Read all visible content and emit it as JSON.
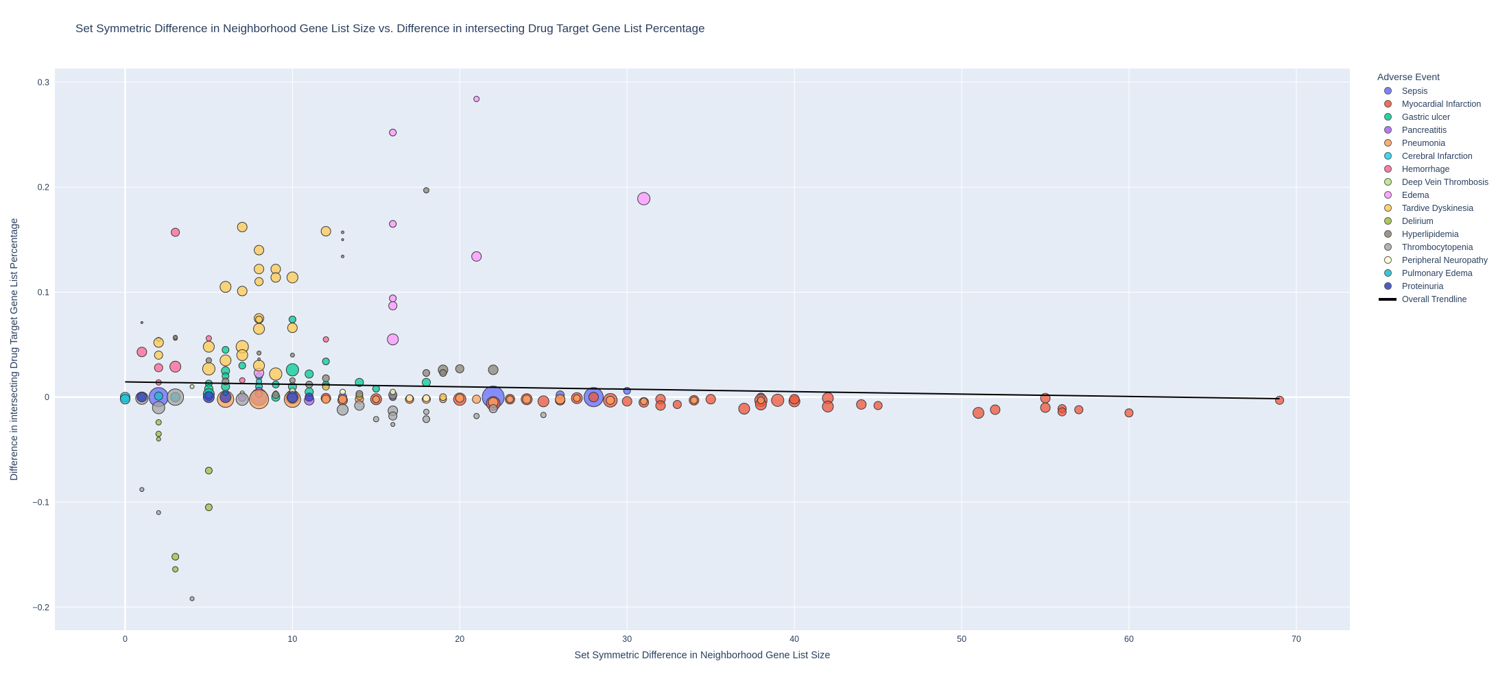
{
  "chart_data": {
    "type": "scatter",
    "title": "Set Symmetric Difference in Neighborhood Gene List Size vs. Difference in intersecting Drug Target Gene List Percentage",
    "xlabel": "Set Symmetric Difference in Neighborhood Gene List Size",
    "ylabel": "Difference in intersecting Drug Target Gene List Percentage",
    "xlim": [
      -4.2,
      73.2
    ],
    "ylim": [
      -0.222,
      0.313
    ],
    "x_ticks": [
      0,
      10,
      20,
      30,
      40,
      50,
      60,
      70
    ],
    "y_ticks": [
      -0.2,
      -0.1,
      0,
      0.1,
      0.2,
      0.3
    ],
    "y_tick_labels": [
      "−0.2",
      "−0.1",
      "0",
      "0.1",
      "0.2",
      "0.3"
    ],
    "legend_title": "Adverse Event",
    "legend_placement": "right",
    "grid": true,
    "series": [
      {
        "name": "Sepsis",
        "color": "#636efa",
        "points": [
          [
            2,
            0,
            14
          ],
          [
            8,
            0,
            12
          ],
          [
            10,
            0,
            10
          ],
          [
            13,
            0,
            6
          ],
          [
            22,
            0,
            16
          ],
          [
            26,
            0.002,
            6
          ],
          [
            28,
            0,
            14
          ],
          [
            30,
            0.006,
            5
          ],
          [
            38,
            0,
            6
          ],
          [
            16,
            0,
            5
          ]
        ]
      },
      {
        "name": "Myocardial Infarction",
        "color": "#ef553b",
        "points": [
          [
            12,
            -0.001,
            7
          ],
          [
            13,
            -0.003,
            7
          ],
          [
            15,
            -0.002,
            8
          ],
          [
            17,
            -0.002,
            6
          ],
          [
            20,
            -0.002,
            9
          ],
          [
            22,
            -0.006,
            10
          ],
          [
            23,
            -0.002,
            7
          ],
          [
            24,
            -0.002,
            8
          ],
          [
            25,
            -0.004,
            8
          ],
          [
            26,
            -0.003,
            7
          ],
          [
            27,
            -0.001,
            8
          ],
          [
            29,
            -0.003,
            10
          ],
          [
            30,
            -0.004,
            7
          ],
          [
            31,
            -0.005,
            7
          ],
          [
            32,
            -0.002,
            7
          ],
          [
            32,
            -0.008,
            7
          ],
          [
            33,
            -0.007,
            6
          ],
          [
            34,
            -0.003,
            7
          ],
          [
            35,
            -0.002,
            7
          ],
          [
            37,
            -0.011,
            8
          ],
          [
            38,
            -0.003,
            9
          ],
          [
            38,
            -0.007,
            8
          ],
          [
            39,
            -0.003,
            9
          ],
          [
            40,
            -0.004,
            8
          ],
          [
            40,
            -0.002,
            7
          ],
          [
            42,
            -0.001,
            8
          ],
          [
            42,
            -0.009,
            8
          ],
          [
            44,
            -0.007,
            7
          ],
          [
            45,
            -0.008,
            6
          ],
          [
            51,
            -0.015,
            8
          ],
          [
            52,
            -0.012,
            7
          ],
          [
            55,
            -0.001,
            7
          ],
          [
            55,
            -0.01,
            7
          ],
          [
            56,
            -0.011,
            6
          ],
          [
            56,
            -0.014,
            6
          ],
          [
            57,
            -0.012,
            6
          ],
          [
            60,
            -0.015,
            6
          ],
          [
            69,
            -0.003,
            6
          ],
          [
            28,
            0,
            7
          ]
        ]
      },
      {
        "name": "Gastric ulcer",
        "color": "#00cc96",
        "points": [
          [
            3,
            0,
            6
          ],
          [
            5,
            0.013,
            5
          ],
          [
            5,
            0.008,
            6
          ],
          [
            5,
            0.003,
            8
          ],
          [
            6,
            0.045,
            5
          ],
          [
            6,
            0.025,
            6
          ],
          [
            6,
            0.02,
            5
          ],
          [
            6,
            0.01,
            6
          ],
          [
            7,
            0.03,
            5
          ],
          [
            8,
            0.02,
            5
          ],
          [
            8,
            0.01,
            5
          ],
          [
            9,
            0.012,
            5
          ],
          [
            10,
            0.074,
            5
          ],
          [
            10,
            0.026,
            9
          ],
          [
            10,
            0.01,
            6
          ],
          [
            11,
            0.022,
            6
          ],
          [
            11,
            0.005,
            6
          ],
          [
            12,
            0.034,
            5
          ],
          [
            12,
            0.012,
            5
          ],
          [
            14,
            0.014,
            6
          ],
          [
            15,
            0.008,
            5
          ],
          [
            18,
            0.014,
            6
          ],
          [
            9,
            0,
            6
          ],
          [
            10,
            0.004,
            5
          ]
        ]
      },
      {
        "name": "Pancreatitis",
        "color": "#ab63fa",
        "points": [
          [
            1,
            0,
            7
          ],
          [
            5,
            0,
            5
          ],
          [
            7,
            0,
            6
          ],
          [
            8,
            0.006,
            5
          ],
          [
            10,
            0,
            8
          ],
          [
            11,
            -0.003,
            7
          ],
          [
            8,
            0.003,
            5
          ]
        ]
      },
      {
        "name": "Pneumonia",
        "color": "#ffa15a",
        "points": [
          [
            6,
            -0.002,
            12
          ],
          [
            8,
            -0.002,
            14
          ],
          [
            10,
            -0.002,
            12
          ],
          [
            12,
            -0.002,
            6
          ],
          [
            13,
            -0.002,
            6
          ],
          [
            14,
            -0.002,
            6
          ],
          [
            15,
            -0.002,
            5
          ],
          [
            17,
            -0.002,
            6
          ],
          [
            18,
            -0.002,
            6
          ],
          [
            19,
            -0.002,
            5
          ],
          [
            20,
            -0.001,
            6
          ],
          [
            21,
            -0.002,
            6
          ],
          [
            22,
            -0.005,
            7
          ],
          [
            23,
            -0.002,
            5
          ],
          [
            24,
            -0.002,
            6
          ],
          [
            26,
            -0.002,
            7
          ],
          [
            27,
            -0.001,
            5
          ],
          [
            29,
            -0.003,
            6
          ],
          [
            31,
            -0.004,
            5
          ],
          [
            34,
            -0.003,
            5
          ],
          [
            38,
            -0.003,
            5
          ]
        ]
      },
      {
        "name": "Cerebral Infarction",
        "color": "#19d3f3",
        "points": [
          [
            0,
            0,
            7
          ],
          [
            1,
            0,
            5
          ],
          [
            3,
            0,
            7
          ],
          [
            5,
            0.002,
            5
          ]
        ]
      },
      {
        "name": "Hemorrhage",
        "color": "#ff6692",
        "points": [
          [
            1,
            0.043,
            7
          ],
          [
            2,
            0.028,
            6
          ],
          [
            2,
            0.014,
            4
          ],
          [
            3,
            0.157,
            6
          ],
          [
            3,
            0.029,
            8
          ],
          [
            3,
            0.056,
            3
          ],
          [
            5,
            0.056,
            4
          ],
          [
            7,
            0.016,
            4
          ],
          [
            12,
            0.055,
            4
          ]
        ]
      },
      {
        "name": "Deep Vein Thrombosis",
        "color": "#b6e880",
        "points": [
          [
            2,
            0.055,
            3
          ],
          [
            4,
            0.01,
            3
          ],
          [
            7,
            0.004,
            3
          ],
          [
            9,
            0.004,
            3
          ]
        ]
      },
      {
        "name": "Edema",
        "color": "#ff97ff",
        "points": [
          [
            8,
            0.023,
            7
          ],
          [
            16,
            0.252,
            5
          ],
          [
            16,
            0.165,
            5
          ],
          [
            16,
            0.094,
            5
          ],
          [
            16,
            0.087,
            6
          ],
          [
            16,
            0.055,
            8
          ],
          [
            21,
            0.284,
            4
          ],
          [
            21,
            0.134,
            7
          ],
          [
            31,
            0.189,
            9
          ]
        ]
      },
      {
        "name": "Tardive Dyskinesia",
        "color": "#fecb52",
        "points": [
          [
            2,
            0.052,
            7
          ],
          [
            2,
            0.04,
            6
          ],
          [
            5,
            0.048,
            8
          ],
          [
            5,
            0.027,
            9
          ],
          [
            6,
            0.105,
            8
          ],
          [
            6,
            0.035,
            8
          ],
          [
            7,
            0.162,
            7
          ],
          [
            7,
            0.101,
            7
          ],
          [
            7,
            0.048,
            9
          ],
          [
            7,
            0.04,
            8
          ],
          [
            8,
            0.14,
            7
          ],
          [
            8,
            0.122,
            7
          ],
          [
            8,
            0.11,
            6
          ],
          [
            8,
            0.075,
            7
          ],
          [
            8,
            0.065,
            8
          ],
          [
            8,
            0.03,
            8
          ],
          [
            9,
            0.122,
            7
          ],
          [
            9,
            0.114,
            7
          ],
          [
            9,
            0.022,
            9
          ],
          [
            10,
            0.114,
            8
          ],
          [
            10,
            0.066,
            7
          ],
          [
            12,
            0.158,
            7
          ],
          [
            12,
            0.01,
            5
          ],
          [
            14,
            0.001,
            5
          ],
          [
            19,
            0,
            5
          ],
          [
            8,
            0.074,
            5
          ]
        ]
      },
      {
        "name": "Delirium",
        "color": "#9dc03e",
        "points": [
          [
            2,
            -0.024,
            4
          ],
          [
            2,
            -0.035,
            4
          ],
          [
            2,
            -0.04,
            3
          ],
          [
            3,
            -0.152,
            5
          ],
          [
            3,
            -0.164,
            4
          ],
          [
            5,
            -0.07,
            5
          ],
          [
            5,
            -0.105,
            5
          ]
        ]
      },
      {
        "name": "Hyperlipidemia",
        "color": "#8c8577",
        "points": [
          [
            1,
            0.071,
            1.5
          ],
          [
            5,
            0.035,
            4
          ],
          [
            6,
            0.015,
            5
          ],
          [
            9,
            0.002,
            5
          ],
          [
            10,
            0.016,
            4
          ],
          [
            11,
            0.012,
            5
          ],
          [
            12,
            0.018,
            5
          ],
          [
            13,
            0.157,
            2
          ],
          [
            13,
            0.15,
            1.5
          ],
          [
            13,
            0.134,
            2
          ],
          [
            14,
            0.003,
            5
          ],
          [
            16,
            0.002,
            6
          ],
          [
            18,
            0.197,
            4
          ],
          [
            18,
            0.023,
            5
          ],
          [
            19,
            0.026,
            7
          ],
          [
            19,
            0.023,
            5
          ],
          [
            20,
            0.027,
            6
          ],
          [
            22,
            0.026,
            7
          ],
          [
            8,
            0.042,
            3
          ],
          [
            8,
            0.036,
            2
          ],
          [
            10,
            0.04,
            3
          ],
          [
            3,
            0.057,
            3
          ]
        ]
      },
      {
        "name": "Thrombocytopenia",
        "color": "#a6a6a6",
        "points": [
          [
            1,
            -0.001,
            9
          ],
          [
            1,
            -0.088,
            3
          ],
          [
            2,
            -0.01,
            9
          ],
          [
            2,
            -0.11,
            3
          ],
          [
            3,
            0,
            12
          ],
          [
            4,
            -0.192,
            3
          ],
          [
            7,
            -0.002,
            9
          ],
          [
            10,
            -0.001,
            7
          ],
          [
            13,
            -0.012,
            8
          ],
          [
            14,
            -0.008,
            7
          ],
          [
            15,
            -0.021,
            4
          ],
          [
            16,
            -0.013,
            7
          ],
          [
            16,
            -0.018,
            6
          ],
          [
            16,
            -0.026,
            3
          ],
          [
            18,
            -0.014,
            4
          ],
          [
            18,
            -0.021,
            5
          ],
          [
            21,
            -0.018,
            4
          ],
          [
            22,
            -0.011,
            6
          ],
          [
            25,
            -0.017,
            4
          ]
        ]
      },
      {
        "name": "Peripheral Neuropathy",
        "color": "#fdfbc6",
        "points": [
          [
            10,
            0.006,
            4
          ],
          [
            13,
            0.005,
            4
          ],
          [
            16,
            0.005,
            4
          ],
          [
            17,
            -0.001,
            5
          ],
          [
            18,
            -0.001,
            5
          ]
        ]
      },
      {
        "name": "Pulmonary Edema",
        "color": "#17becf",
        "points": [
          [
            0,
            -0.002,
            7
          ],
          [
            2,
            0.001,
            6
          ],
          [
            6,
            0.004,
            4
          ],
          [
            8,
            0.015,
            4
          ]
        ]
      },
      {
        "name": "Proteinuria",
        "color": "#3040c0",
        "points": [
          [
            1,
            0,
            7
          ],
          [
            5,
            0,
            8
          ],
          [
            6,
            0,
            8
          ],
          [
            10,
            0,
            8
          ],
          [
            11,
            0,
            6
          ]
        ]
      }
    ],
    "trendline": {
      "name": "Overall Trendline",
      "color": "#000000",
      "points": [
        [
          0,
          0.0145
        ],
        [
          69,
          -0.0015
        ]
      ]
    }
  }
}
